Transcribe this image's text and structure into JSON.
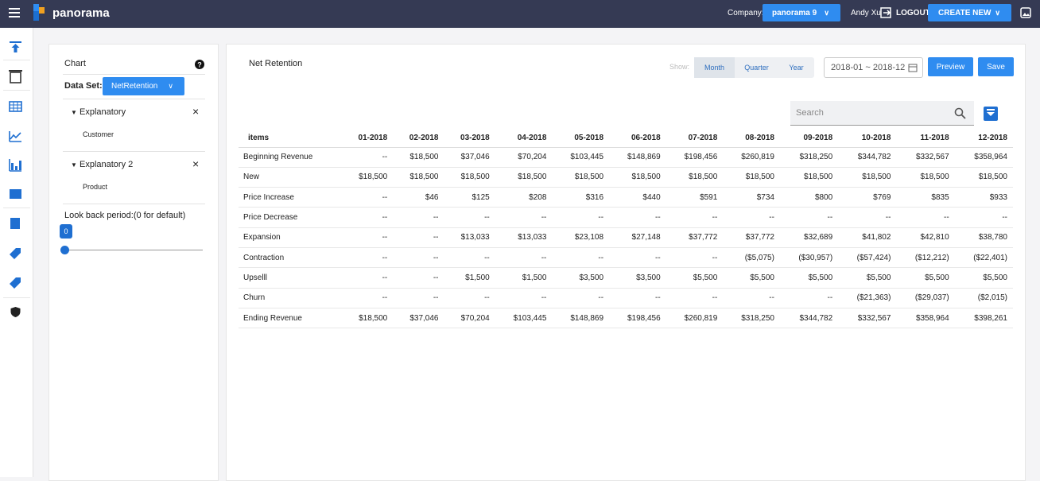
{
  "header": {
    "brand": "panorama",
    "company_label": "Company:",
    "company": "panorama 9",
    "user": "Andy Xu",
    "logout": "LOGOUT",
    "create_new": "CREATE NEW"
  },
  "panel": {
    "title": "Chart",
    "dataset_label": "Data Set:",
    "dataset": "NetRetention",
    "explanatory": [
      {
        "title": "Explanatory",
        "item": "Customer"
      },
      {
        "title": "Explanatory 2",
        "item": "Product"
      }
    ],
    "lookback_label": "Look back period:(0 for default)",
    "lookback_value": 0
  },
  "main": {
    "title": "Net Retention",
    "show_label": "Show:",
    "periods": [
      "Month",
      "Quarter",
      "Year"
    ],
    "date_range": "2018-01 ~ 2018-12",
    "preview": "Preview",
    "save": "Save",
    "search_placeholder": "Search"
  },
  "table": {
    "columns": [
      "items",
      "01-2018",
      "02-2018",
      "03-2018",
      "04-2018",
      "05-2018",
      "06-2018",
      "07-2018",
      "08-2018",
      "09-2018",
      "10-2018",
      "11-2018",
      "12-2018"
    ],
    "rows": [
      [
        "Beginning Revenue",
        "--",
        "$18,500",
        "$37,046",
        "$70,204",
        "$103,445",
        "$148,869",
        "$198,456",
        "$260,819",
        "$318,250",
        "$344,782",
        "$332,567",
        "$358,964"
      ],
      [
        "New",
        "$18,500",
        "$18,500",
        "$18,500",
        "$18,500",
        "$18,500",
        "$18,500",
        "$18,500",
        "$18,500",
        "$18,500",
        "$18,500",
        "$18,500",
        "$18,500"
      ],
      [
        "Price Increase",
        "--",
        "$46",
        "$125",
        "$208",
        "$316",
        "$440",
        "$591",
        "$734",
        "$800",
        "$769",
        "$835",
        "$933"
      ],
      [
        "Price Decrease",
        "--",
        "--",
        "--",
        "--",
        "--",
        "--",
        "--",
        "--",
        "--",
        "--",
        "--",
        "--"
      ],
      [
        "Expansion",
        "--",
        "--",
        "$13,033",
        "$13,033",
        "$23,108",
        "$27,148",
        "$37,772",
        "$37,772",
        "$32,689",
        "$41,802",
        "$42,810",
        "$38,780"
      ],
      [
        "Contraction",
        "--",
        "--",
        "--",
        "--",
        "--",
        "--",
        "--",
        "($5,075)",
        "($30,957)",
        "($57,424)",
        "($12,212)",
        "($22,401)"
      ],
      [
        "Upselll",
        "--",
        "--",
        "$1,500",
        "$1,500",
        "$3,500",
        "$3,500",
        "$5,500",
        "$5,500",
        "$5,500",
        "$5,500",
        "$5,500",
        "$5,500"
      ],
      [
        "Churn",
        "--",
        "--",
        "--",
        "--",
        "--",
        "--",
        "--",
        "--",
        "--",
        "($21,363)",
        "($29,037)",
        "($2,015)"
      ],
      [
        "Ending Revenue",
        "$18,500",
        "$37,046",
        "$70,204",
        "$103,445",
        "$148,869",
        "$198,456",
        "$260,819",
        "$318,250",
        "$344,782",
        "$332,567",
        "$358,964",
        "$398,261"
      ]
    ]
  }
}
